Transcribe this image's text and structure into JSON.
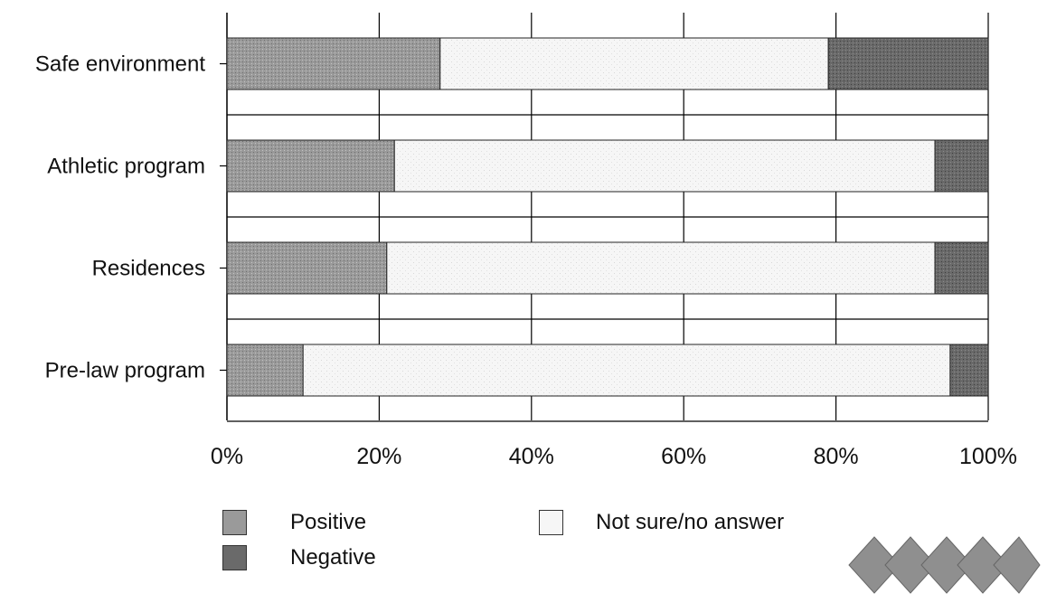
{
  "chart_data": {
    "type": "bar",
    "orientation": "horizontal",
    "stacked": true,
    "percent": true,
    "categories": [
      "Safe environment",
      "Athletic program",
      "Residences",
      "Pre-law program"
    ],
    "series": [
      {
        "name": "Positive",
        "values": [
          28,
          22,
          21,
          10
        ],
        "color": "#8a8a8a"
      },
      {
        "name": "Not sure/no answer",
        "values": [
          51,
          71,
          72,
          85
        ],
        "color": "#f0f0f0"
      },
      {
        "name": "Negative",
        "values": [
          21,
          7,
          7,
          5
        ],
        "color": "#5a5a5a"
      }
    ],
    "xticks": [
      "0%",
      "20%",
      "40%",
      "60%",
      "80%",
      "100%"
    ],
    "xlim": [
      0,
      100
    ],
    "grid": true,
    "legend_position": "bottom",
    "title": "",
    "xlabel": "",
    "ylabel": ""
  },
  "legend": {
    "positive": "Positive",
    "negative": "Negative",
    "not_sure": "Not sure/no answer"
  },
  "colors": {
    "positive": "#8a8a8a",
    "not_sure": "#f0f0f0",
    "negative": "#5a5a5a",
    "grid": "#000000"
  },
  "decoration": {
    "icon": "diamond-row-icon",
    "count": 5
  }
}
